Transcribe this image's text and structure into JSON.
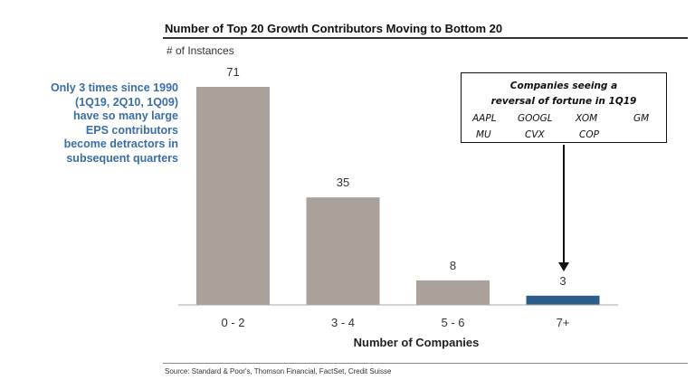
{
  "chart_data": {
    "type": "bar",
    "title": "Number of Top 20 Growth Contributors Moving to Bottom 20",
    "ylabel": "# of Instances",
    "xlabel": "Number of Companies",
    "categories": [
      "0 - 2",
      "3 - 4",
      "5 - 6",
      "7+"
    ],
    "values": [
      71,
      35,
      8,
      3
    ],
    "ylim": [
      0,
      75
    ],
    "grid": false,
    "colors": [
      "#a9a19a",
      "#a9a19a",
      "#a9a19a",
      "#2b5c8a"
    ],
    "source": "Source: Standard & Poor's, Thomson Financial, FactSet, Credit Suisse"
  },
  "note": [
    "Only 3 times since 1990",
    "(1Q19, 2Q10, 1Q09)",
    "have so many large",
    "EPS contributors",
    "become detractors in",
    "subsequent quarters"
  ],
  "callout": {
    "heading": [
      "Companies seeing a",
      "reversal of fortune in 1Q19"
    ],
    "tickers": [
      "AAPL",
      "GOOGL",
      "XOM",
      "GM",
      "MU",
      "CVX",
      "COP"
    ]
  }
}
